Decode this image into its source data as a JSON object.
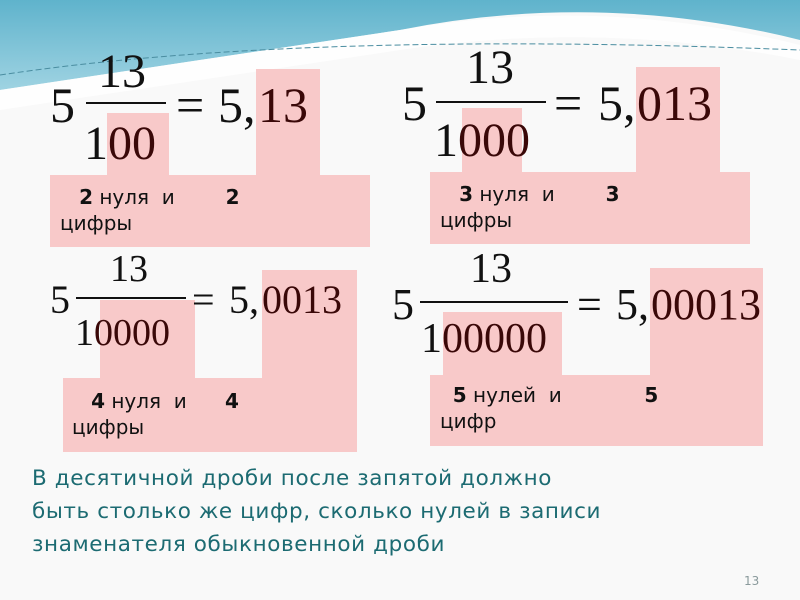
{
  "slide": {
    "page_number": "13",
    "accent_color": "#f8c9c9",
    "text_color": "#1c6b72",
    "examples": [
      {
        "whole": "5",
        "numerator": "13",
        "den_lead": "1",
        "den_zeros": "00",
        "eq": "=",
        "int_part": "5,",
        "frac_digits": "13",
        "count_a": "2",
        "word_a": " нуля  и        ",
        "count_b": "2",
        "word_b": "цифры"
      },
      {
        "whole": "5",
        "numerator": "13",
        "den_lead": "1",
        "den_zeros": "000",
        "eq": "=",
        "int_part": "5,",
        "frac_digits": "013",
        "count_a": "3",
        "word_a": " нуля  и        ",
        "count_b": "3",
        "word_b": "цифры"
      },
      {
        "whole": "5",
        "numerator": "13",
        "den_lead": "1",
        "den_zeros": "0000",
        "eq": "=",
        "int_part": "5,",
        "frac_digits": "0013",
        "count_a": "4",
        "word_a": " нуля  и      ",
        "count_b": "4",
        "word_b": "цифры"
      },
      {
        "whole": "5",
        "numerator": "13",
        "den_lead": "1",
        "den_zeros": "00000",
        "eq": "=",
        "int_part": "5,",
        "frac_digits": "00013",
        "count_a": "5",
        "word_a": " нулей  и             ",
        "count_b": "5",
        "word_b": "цифр"
      }
    ],
    "rule_lines": [
      "В десятичной дроби после запятой должно",
      "быть столько же цифр, сколько нулей в записи",
      "знаменателя обыкновенной дроби"
    ]
  }
}
